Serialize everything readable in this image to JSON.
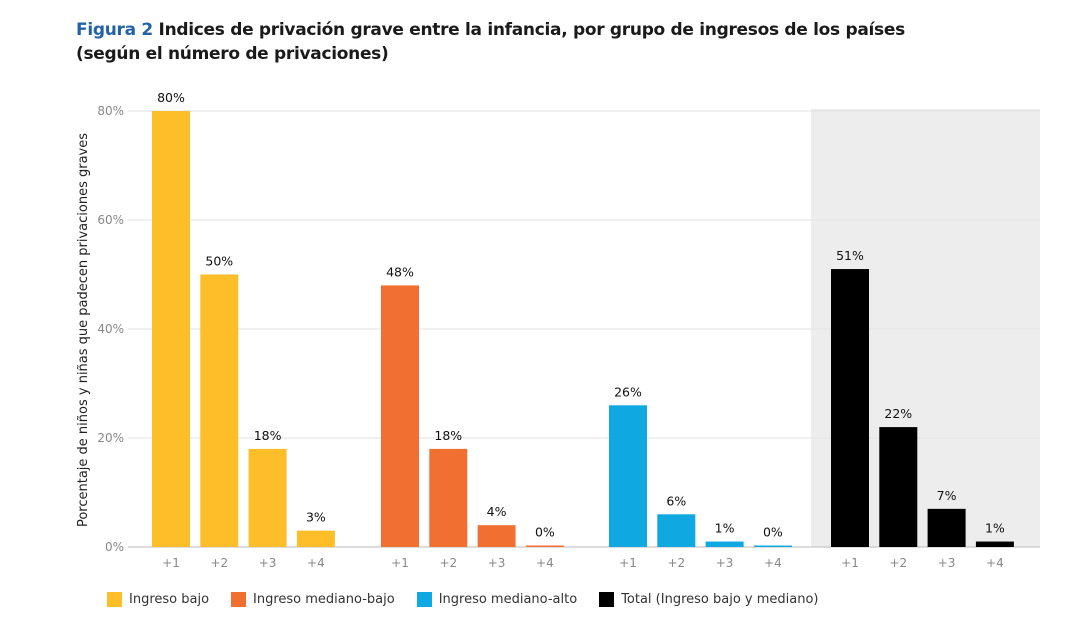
{
  "title": {
    "figure": "Figura 2",
    "text": "Indices de privación grave entre la infancia, por grupo de ingresos de los países",
    "line2": "(según el número de privaciones)"
  },
  "chart_data": {
    "type": "bar",
    "ylabel": "Porcentaje de niños y niñas que padecen privaciones graves",
    "ylim": [
      0,
      80
    ],
    "yticks": [
      "0%",
      "20%",
      "40%",
      "60%",
      "80%"
    ],
    "ytick_values": [
      0,
      20,
      40,
      60,
      80
    ],
    "grid": true,
    "categories": [
      "+1",
      "+2",
      "+3",
      "+4"
    ],
    "series": [
      {
        "name": "Ingreso bajo",
        "color": "#FDBE2A",
        "values": [
          80,
          50,
          18,
          3
        ],
        "labels": [
          "80%",
          "50%",
          "18%",
          "3%"
        ]
      },
      {
        "name": "Ingreso mediano-bajo",
        "color": "#F26F32",
        "values": [
          48,
          18,
          4,
          0
        ],
        "labels": [
          "48%",
          "18%",
          "4%",
          "0%"
        ]
      },
      {
        "name": "Ingreso mediano-alto",
        "color": "#0FA8E0",
        "values": [
          26,
          6,
          1,
          0
        ],
        "labels": [
          "26%",
          "6%",
          "1%",
          "0%"
        ]
      },
      {
        "name": "Total (Ingreso bajo y mediano)",
        "color": "#000000",
        "values": [
          51,
          22,
          7,
          1
        ],
        "labels": [
          "51%",
          "22%",
          "7%",
          "1%"
        ],
        "highlighted": true
      }
    ],
    "legend": "bottom"
  }
}
